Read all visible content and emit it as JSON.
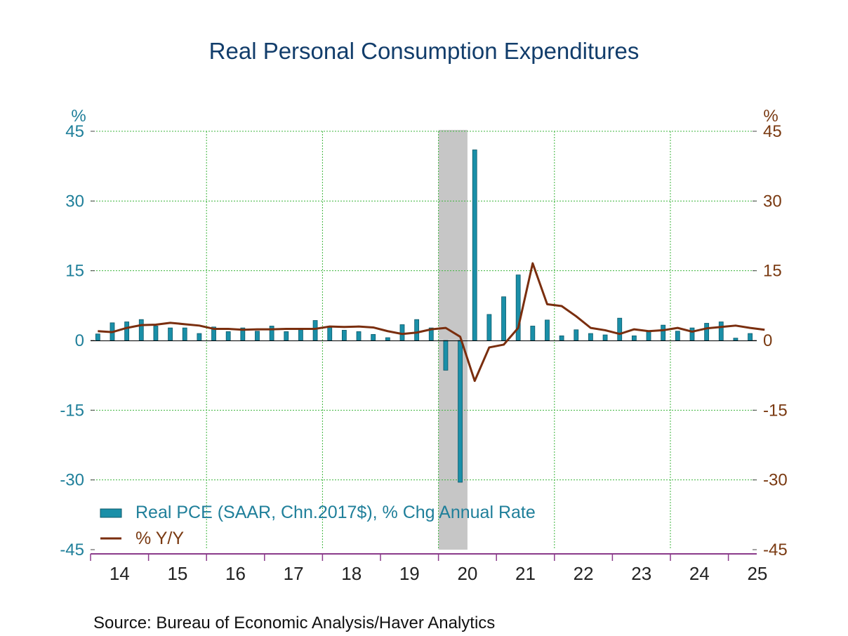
{
  "chart_data": {
    "type": "bar",
    "title": "Real Personal Consumption Expenditures",
    "source": "Source:  Bureau of Economic Analysis/Haver Analytics",
    "y_left_unit": "%",
    "y_right_unit": "%",
    "ylim": [
      -45,
      45
    ],
    "yticks": [
      45,
      30,
      15,
      0,
      -15,
      -30,
      -45
    ],
    "grid": true,
    "legend_placement": "bottom-left",
    "x_tick_labels": [
      "14",
      "15",
      "16",
      "17",
      "18",
      "19",
      "20",
      "21",
      "22",
      "23",
      "24",
      "25"
    ],
    "first_quarter": "2014-Q1",
    "recession_shading": {
      "start": "2020-Q1",
      "end": "2020-Q2",
      "color": "#c6c6c6"
    },
    "colors": {
      "bar": "#1a8fa8",
      "line": "#7a2e0e",
      "grid": "#3db53d",
      "axis": "#8a3a8a"
    },
    "series": [
      {
        "name": "Real PCE (SAAR, Chn.2017$), % Chg Annual Rate",
        "kind": "bar",
        "values": [
          1.4,
          3.8,
          4.0,
          4.5,
          3.1,
          2.7,
          2.7,
          1.5,
          2.9,
          1.9,
          2.7,
          2.0,
          3.1,
          1.9,
          2.3,
          4.3,
          2.8,
          2.2,
          1.9,
          1.3,
          0.6,
          3.4,
          4.5,
          2.7,
          -6.4,
          -30.5,
          41.0,
          5.6,
          9.4,
          14.1,
          3.1,
          4.4,
          1.0,
          2.3,
          1.5,
          1.2,
          4.8,
          1.0,
          2.1,
          3.3,
          2.0,
          2.7,
          3.7,
          4.0,
          0.5,
          1.5
        ]
      },
      {
        "name": "% Y/Y",
        "kind": "line",
        "values": [
          2.0,
          1.8,
          2.7,
          3.3,
          3.4,
          3.8,
          3.5,
          3.2,
          2.5,
          2.5,
          2.3,
          2.4,
          2.4,
          2.5,
          2.5,
          2.5,
          3.0,
          2.9,
          3.0,
          2.8,
          2.0,
          1.4,
          1.7,
          2.4,
          2.7,
          0.8,
          -8.7,
          -1.5,
          -0.9,
          2.7,
          16.6,
          7.8,
          7.4,
          5.2,
          2.7,
          2.2,
          1.4,
          2.4,
          2.0,
          2.2,
          2.7,
          1.9,
          2.6,
          2.9,
          3.2,
          2.7,
          2.3
        ]
      }
    ]
  }
}
